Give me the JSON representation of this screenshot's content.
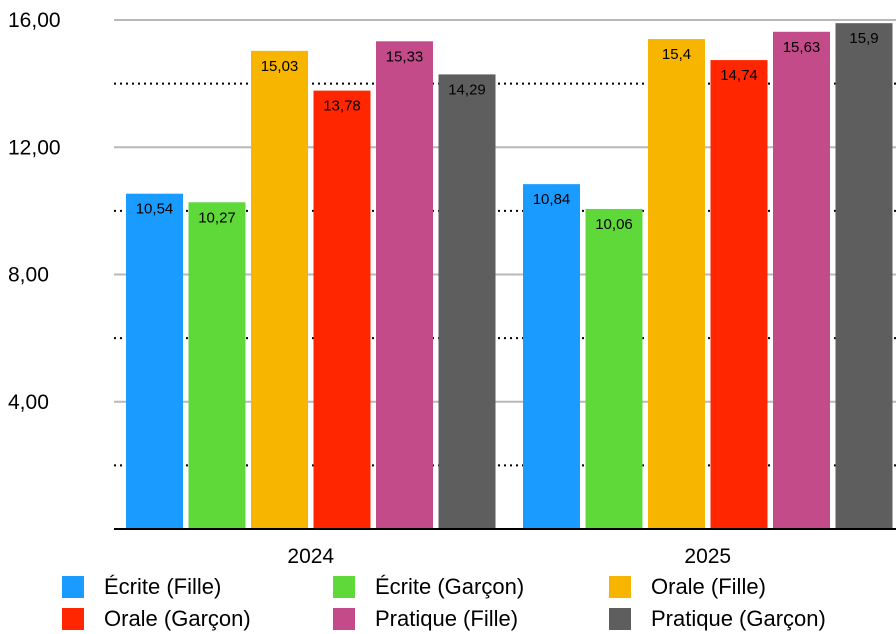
{
  "chart_data": {
    "type": "bar",
    "categories": [
      "2024",
      "2025"
    ],
    "series": [
      {
        "name": "Écrite (Fille)",
        "color": "#1a9bff",
        "values": [
          10.54,
          10.84
        ],
        "labels": [
          "10,54",
          "10,84"
        ]
      },
      {
        "name": "Écrite (Garçon)",
        "color": "#5fd83a",
        "values": [
          10.27,
          10.06
        ],
        "labels": [
          "10,27",
          "10,06"
        ]
      },
      {
        "name": "Orale (Fille)",
        "color": "#f7b500",
        "values": [
          15.03,
          15.4
        ],
        "labels": [
          "15,03",
          "15,4"
        ]
      },
      {
        "name": "Orale (Garçon)",
        "color": "#ff2600",
        "values": [
          13.78,
          14.74
        ],
        "labels": [
          "13,78",
          "14,74"
        ]
      },
      {
        "name": "Pratique (Fille)",
        "color": "#c44b8a",
        "values": [
          15.33,
          15.63
        ],
        "labels": [
          "15,33",
          "15,63"
        ]
      },
      {
        "name": "Pratique (Garçon)",
        "color": "#5e5e5e",
        "values": [
          14.29,
          15.9
        ],
        "labels": [
          "14,29",
          "15,9"
        ]
      }
    ],
    "yticks": [
      4,
      8,
      12,
      16
    ],
    "ytick_labels": [
      "4,00",
      "8,00",
      "12,00",
      "16,00"
    ],
    "ylim": [
      0,
      16
    ],
    "grid": true,
    "legend_position": "bottom"
  }
}
